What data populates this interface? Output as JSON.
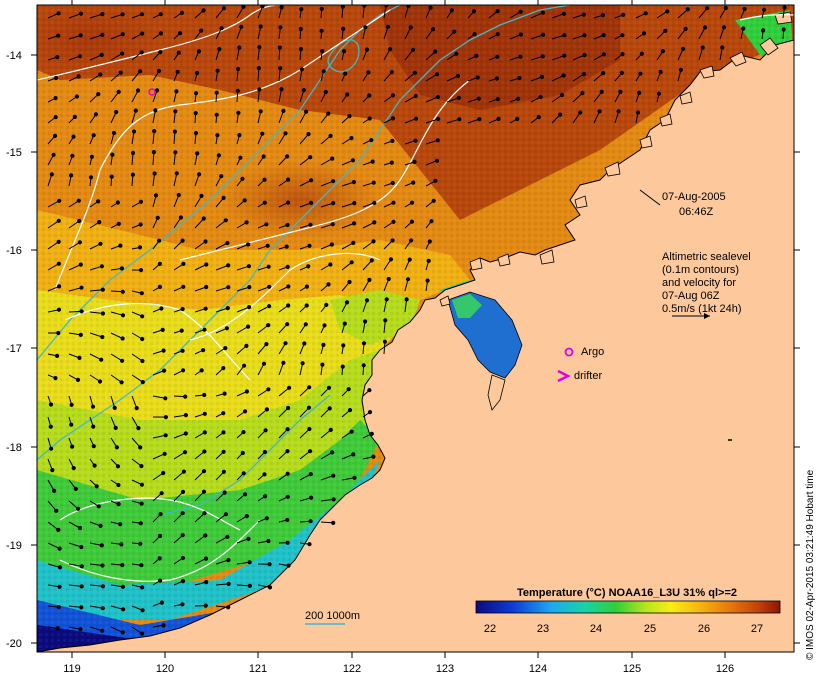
{
  "map": {
    "lon_ticks": [
      "119",
      "120",
      "121",
      "122",
      "123",
      "124",
      "125",
      "126"
    ],
    "lat_ticks": [
      "-14",
      "-15",
      "-16",
      "-17",
      "-18",
      "-19",
      "-20"
    ],
    "date_line1": "07-Aug-2005",
    "date_line2": "06:46Z",
    "alti_lines": [
      "Altimetric sealevel",
      "(0.1m contours)",
      "and velocity for",
      "07-Aug 06Z",
      "0.5m/s (1kt 24h)"
    ],
    "argo_label": "Argo",
    "drifter_label": "drifter",
    "depth_label": "200  1000m",
    "colorbar_title": "Temperature (°C) NOAA16_L3U 31% ql>=2",
    "colorbar_ticks": [
      "22",
      "23",
      "24",
      "25",
      "26",
      "27"
    ],
    "side_credit": "© IMOS 02-Apr-2015 03:21:49 Hobart time"
  },
  "colors": {
    "land": "#fdc99c",
    "contour": "#ffffff",
    "isobath": "#3fb9c7",
    "argo_drifter": "#e000e0"
  }
}
